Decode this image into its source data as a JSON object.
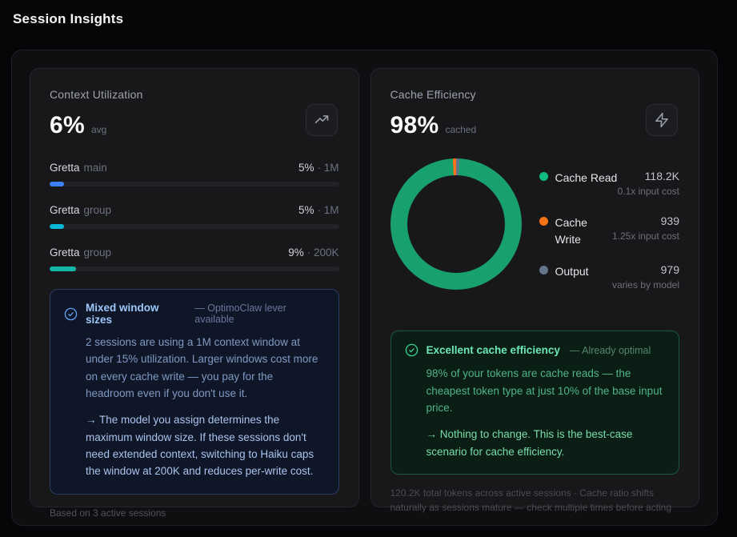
{
  "page": {
    "title": "Session Insights"
  },
  "context_card": {
    "title": "Context Utilization",
    "stat": "6%",
    "stat_suffix": "avg",
    "icon": "trending-up",
    "sessions": [
      {
        "name": "Gretta",
        "tag": "main",
        "percent": "5%",
        "window_label": "· 1M",
        "bar_percent": 5,
        "bar_color": "#3b82f6"
      },
      {
        "name": "Gretta",
        "tag": "group",
        "percent": "5%",
        "window_label": "· 1M",
        "bar_percent": 5,
        "bar_color": "#06b6d4"
      },
      {
        "name": "Gretta",
        "tag": "group",
        "percent": "9%",
        "window_label": "· 200K",
        "bar_percent": 9,
        "bar_color": "#14b8a6"
      }
    ],
    "callout": {
      "title": "Mixed window sizes",
      "subtitle": "— OptimoClaw lever available",
      "body": "2 sessions are using a 1M context window at under 15% utilization. Larger windows cost more on every cache write — you pay for the headroom even if you don't use it.",
      "action": "→ The model you assign determines the maximum window size. If these sessions don't need extended context, switching to Haiku caps the window at 200K and reduces per-write cost."
    },
    "footer": "Based on 3 active sessions",
    "accent_colors": {
      "blue_title": "#9ec7fb",
      "border": "#2b3c61"
    }
  },
  "cache_card": {
    "title": "Cache Efficiency",
    "stat": "98%",
    "stat_suffix": "cached",
    "icon": "lightning-bolt",
    "legend": [
      {
        "label": "Cache Read",
        "value": "118.2K",
        "note": "0.1x input cost",
        "color": "#10b981"
      },
      {
        "label": "Cache Write",
        "value": "939",
        "note": "1.25x input cost",
        "color": "#f97316"
      },
      {
        "label": "Output",
        "value": "979",
        "note": "varies by model",
        "color": "#64748b"
      }
    ],
    "callout": {
      "title": "Excellent cache efficiency",
      "subtitle": "— Already optimal",
      "body": "98% of your tokens are cache reads — the cheapest token type at just 10% of the base input price.",
      "action": "→ Nothing to change. This is the best-case scenario for cache efficiency."
    },
    "footer": "120.2K total tokens across active sessions · Cache ratio shifts naturally as sessions mature — check multiple times before acting",
    "accent_colors": {
      "green_title": "#6ee7b7",
      "border": "#1e5540"
    }
  },
  "chart_data": {
    "type": "pie",
    "donut": true,
    "title": "Cache Efficiency token breakdown",
    "legend_position": "right",
    "series": [
      {
        "name": "Cache Read",
        "value": 118200,
        "display": "118.2K",
        "color": "#18a06e"
      },
      {
        "name": "Cache Write",
        "value": 939,
        "display": "939",
        "color": "#f97316"
      },
      {
        "name": "Output",
        "value": 979,
        "display": "979",
        "color": "#64748b"
      }
    ],
    "total_display": "120.2K",
    "cached_share_display": "98%"
  }
}
